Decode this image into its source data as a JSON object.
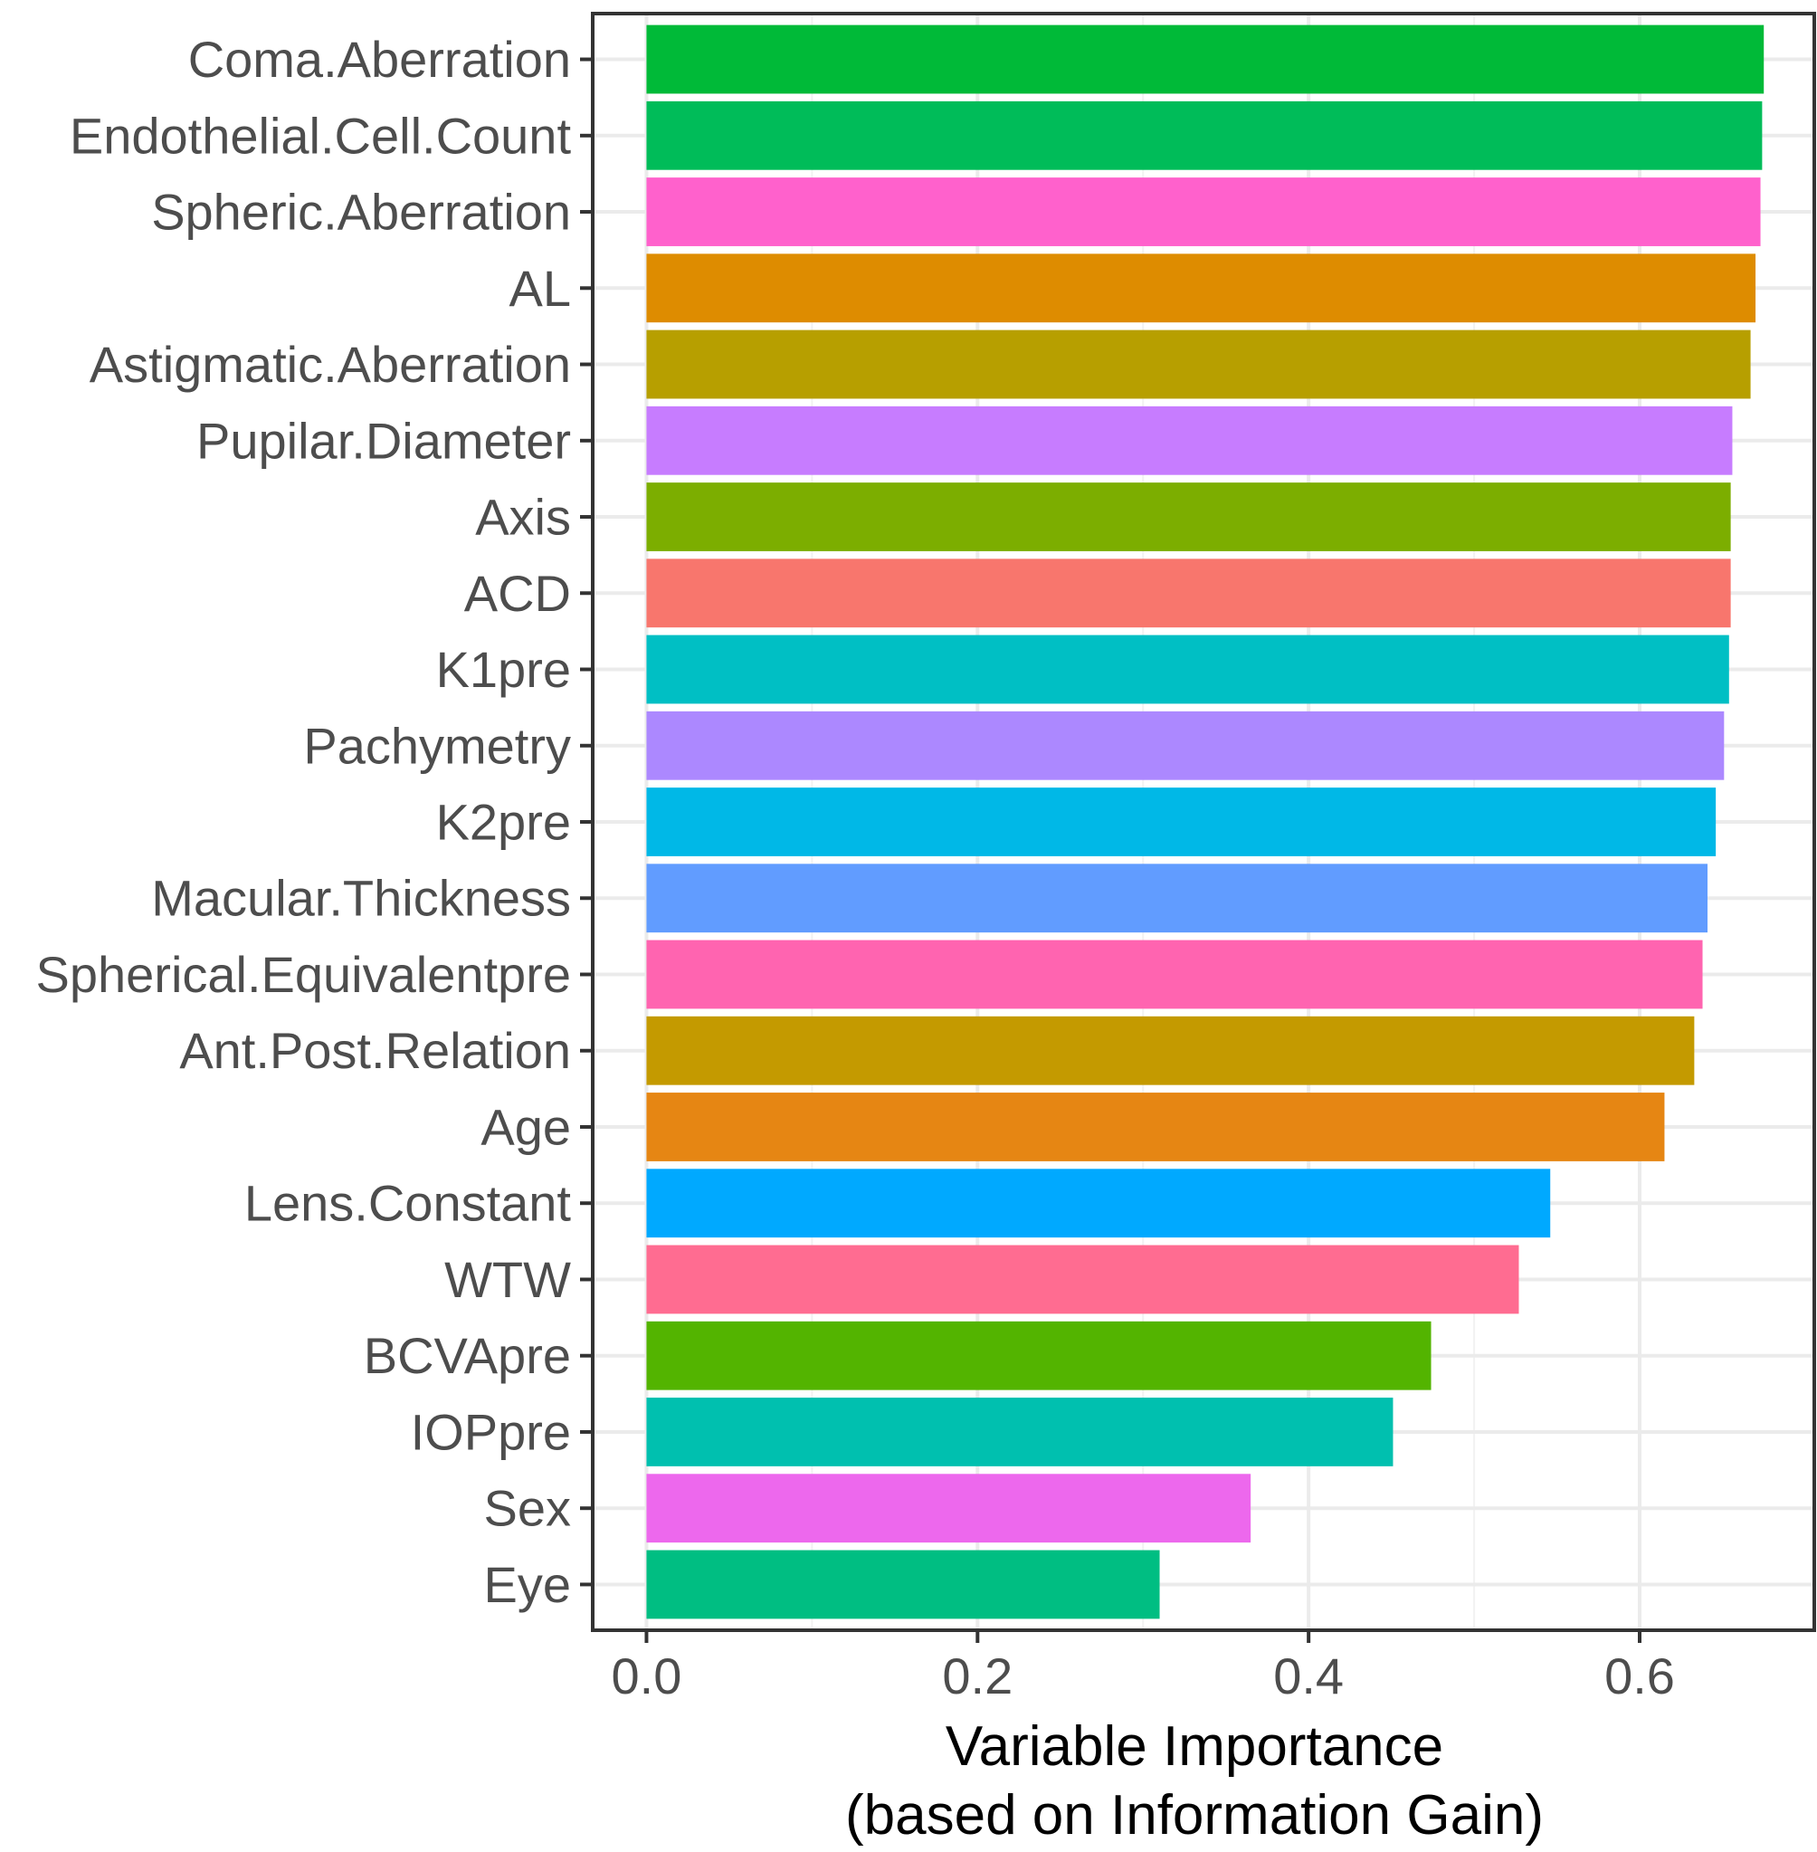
{
  "chart_data": {
    "type": "bar",
    "orientation": "horizontal",
    "title": "",
    "xlabel_lines": [
      "Variable Importance",
      "(based on Information Gain)"
    ],
    "ylabel": "",
    "xlim": [
      -0.0325,
      0.7055
    ],
    "xticks": [
      0.0,
      0.2,
      0.4,
      0.6
    ],
    "xtick_labels": [
      "0.0",
      "0.2",
      "0.4",
      "0.6"
    ],
    "grid": true,
    "legend": "none",
    "categories": [
      "Coma.Aberration",
      "Endothelial.Cell.Count",
      "Spheric.Aberration",
      "AL",
      "Astigmatic.Aberration",
      "Pupilar.Diameter",
      "Axis",
      "ACD",
      "K1pre",
      "Pachymetry",
      "K2pre",
      "Macular.Thickness",
      "Spherical.Equivalentpre",
      "Ant.Post.Relation",
      "Age",
      "Lens.Constant",
      "WTW",
      "BCVApre",
      "IOPpre",
      "Sex",
      "Eye"
    ],
    "values": [
      0.675,
      0.674,
      0.673,
      0.67,
      0.667,
      0.656,
      0.655,
      0.655,
      0.654,
      0.651,
      0.646,
      0.641,
      0.638,
      0.633,
      0.615,
      0.546,
      0.527,
      0.474,
      0.451,
      0.365,
      0.31
    ],
    "colors": [
      "#00BA38",
      "#00BC59",
      "#FF61CC",
      "#DE8C00",
      "#B79F00",
      "#C77CFF",
      "#7CAE00",
      "#F8766D",
      "#00BFC4",
      "#AC88FF",
      "#00B8E7",
      "#619CFF",
      "#FF64B0",
      "#C49A00",
      "#E68613",
      "#00A9FF",
      "#FF6C91",
      "#53B400",
      "#00C0AF",
      "#ED68ED",
      "#00BE82"
    ]
  }
}
